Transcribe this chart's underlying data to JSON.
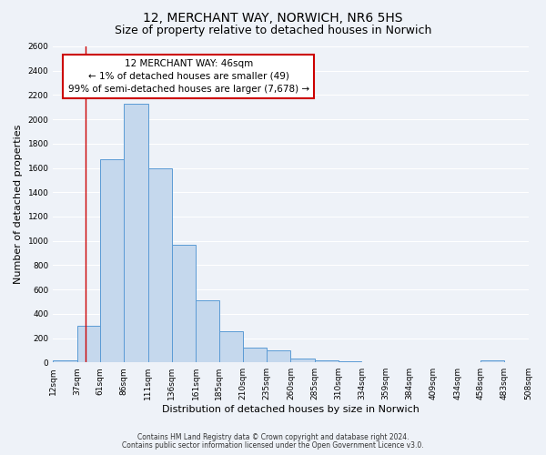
{
  "title": "12, MERCHANT WAY, NORWICH, NR6 5HS",
  "subtitle": "Size of property relative to detached houses in Norwich",
  "xlabel": "Distribution of detached houses by size in Norwich",
  "ylabel": "Number of detached properties",
  "bar_left_edges": [
    12,
    37,
    61,
    86,
    111,
    136,
    161,
    185,
    210,
    235,
    260,
    285,
    310,
    334,
    359,
    384,
    409,
    434,
    458,
    483
  ],
  "bar_widths": [
    25,
    24,
    25,
    25,
    25,
    25,
    24,
    25,
    25,
    25,
    25,
    25,
    24,
    25,
    25,
    25,
    25,
    24,
    25,
    25
  ],
  "bar_heights": [
    20,
    300,
    1670,
    2130,
    1600,
    970,
    510,
    255,
    125,
    100,
    35,
    15,
    10,
    5,
    5,
    5,
    5,
    5,
    20,
    5
  ],
  "bar_facecolor": "#c5d8ed",
  "bar_edgecolor": "#5b9bd5",
  "tick_labels": [
    "12sqm",
    "37sqm",
    "61sqm",
    "86sqm",
    "111sqm",
    "136sqm",
    "161sqm",
    "185sqm",
    "210sqm",
    "235sqm",
    "260sqm",
    "285sqm",
    "310sqm",
    "334sqm",
    "359sqm",
    "384sqm",
    "409sqm",
    "434sqm",
    "458sqm",
    "483sqm",
    "508sqm"
  ],
  "vline_x": 46,
  "vline_color": "#cc0000",
  "ylim": [
    0,
    2600
  ],
  "yticks": [
    0,
    200,
    400,
    600,
    800,
    1000,
    1200,
    1400,
    1600,
    1800,
    2000,
    2200,
    2400,
    2600
  ],
  "annotation_title": "12 MERCHANT WAY: 46sqm",
  "annotation_line1": "← 1% of detached houses are smaller (49)",
  "annotation_line2": "99% of semi-detached houses are larger (7,678) →",
  "annotation_box_facecolor": "#ffffff",
  "annotation_box_edgecolor": "#cc0000",
  "footer1": "Contains HM Land Registry data © Crown copyright and database right 2024.",
  "footer2": "Contains public sector information licensed under the Open Government Licence v3.0.",
  "bg_color": "#eef2f8",
  "plot_bg_color": "#eef2f8",
  "grid_color": "#ffffff",
  "title_fontsize": 10,
  "subtitle_fontsize": 9,
  "tick_fontsize": 6.5,
  "ylabel_fontsize": 8,
  "xlabel_fontsize": 8,
  "footer_fontsize": 5.5,
  "annotation_fontsize": 7.5
}
